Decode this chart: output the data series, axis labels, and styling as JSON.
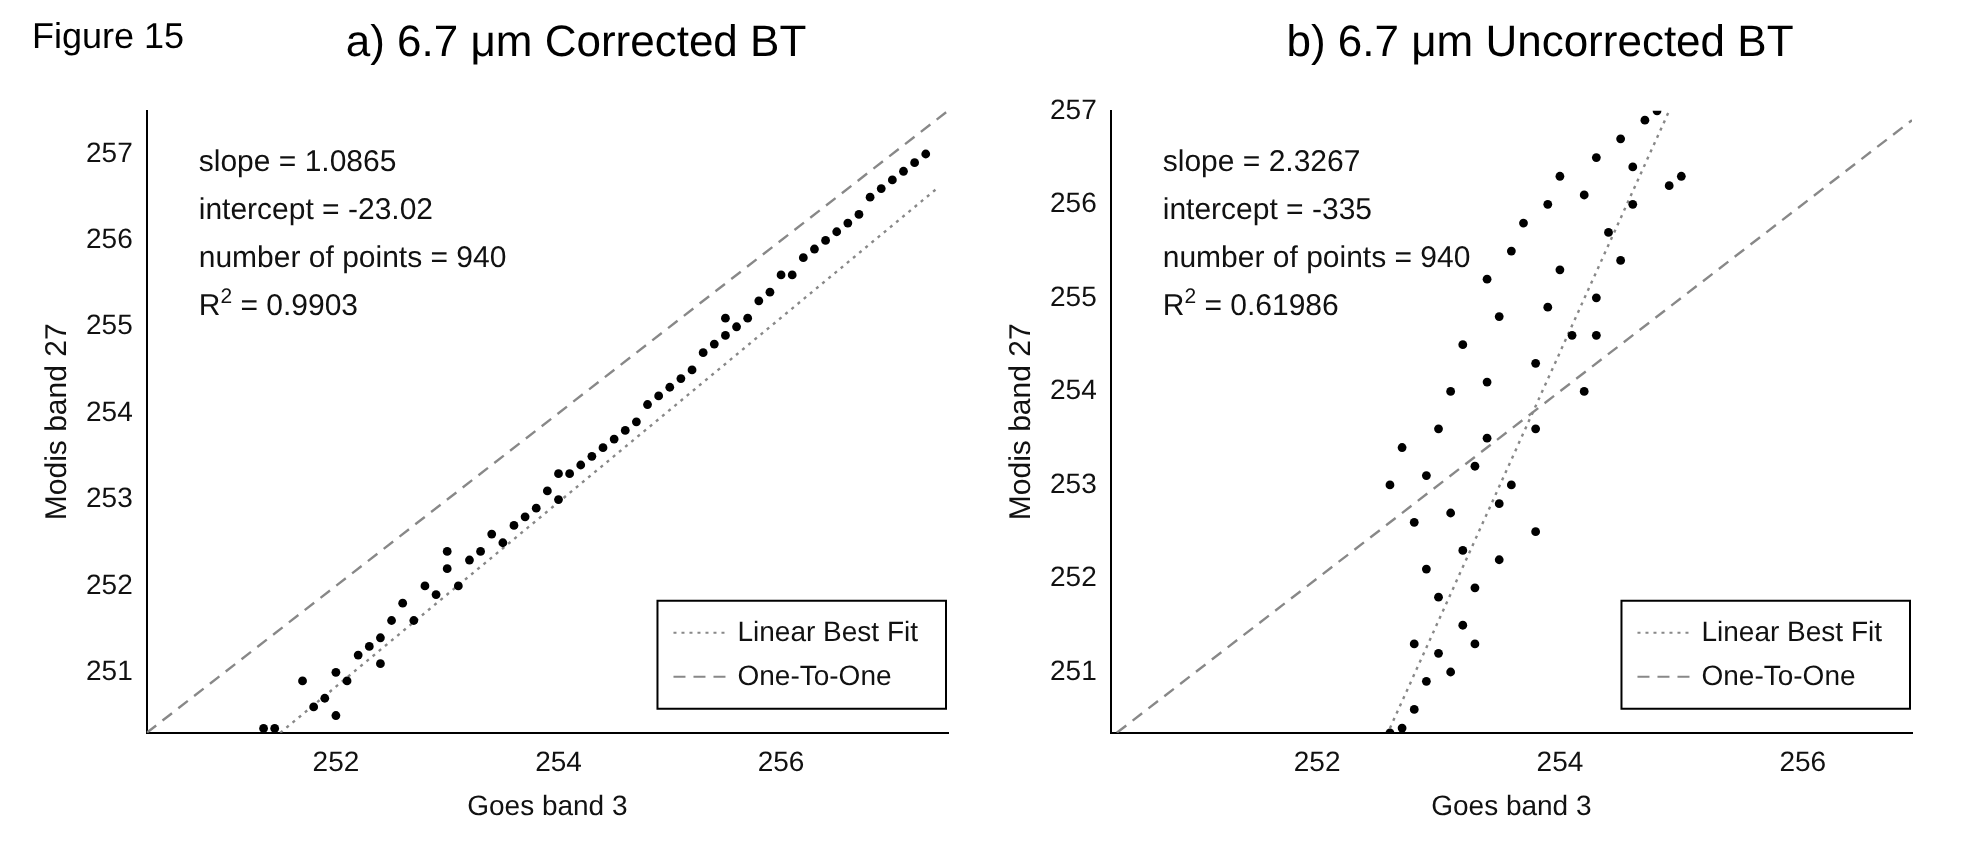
{
  "chart_data": [
    {
      "type": "scatter",
      "title": "a) 6.7 μm Corrected BT",
      "xlabel": "Goes band 3",
      "ylabel": "Modis band 27",
      "annotations": [
        "Figure 15",
        "slope = 1.0865",
        "intercept = -23.02",
        "number of points = 940",
        "R$^{2}$ = 0.9903"
      ],
      "xlim": [
        250.3,
        257.5
      ],
      "ylim": [
        250.3,
        257.5
      ],
      "xticks": [
        252,
        254,
        256
      ],
      "yticks": [
        251,
        252,
        253,
        254,
        255,
        256,
        257
      ],
      "legend": "bottom right",
      "series": [
        {
          "marker": "circle",
          "color": "#000000",
          "x": [
            251.35,
            251.45,
            251.7,
            251.8,
            251.9,
            252.0,
            252.0,
            252.1,
            252.2,
            252.3,
            252.4,
            252.5,
            252.6,
            252.7,
            252.8,
            252.9,
            253.0,
            253.1,
            253.2,
            253.3,
            253.4,
            253.5,
            253.6,
            253.7,
            253.8,
            253.9,
            254.0,
            254.1,
            254.2,
            254.3,
            254.4,
            254.5,
            254.6,
            254.7,
            254.8,
            254.9,
            255.0,
            255.1,
            255.2,
            255.3,
            255.4,
            255.5,
            255.6,
            255.7,
            255.8,
            255.9,
            256.0,
            256.1,
            256.2,
            256.3,
            256.4,
            256.5,
            256.6,
            256.7,
            256.8,
            256.9,
            257.0,
            257.1,
            257.2,
            257.3,
            253.0,
            254.0,
            255.5,
            252.4
          ],
          "values": [
            250.35,
            250.35,
            250.9,
            250.6,
            250.7,
            250.5,
            251.0,
            250.9,
            251.2,
            251.3,
            251.4,
            251.6,
            251.8,
            251.6,
            252.0,
            251.9,
            252.2,
            252.0,
            252.3,
            252.4,
            252.6,
            252.5,
            252.7,
            252.8,
            252.9,
            253.1,
            253.0,
            253.3,
            253.4,
            253.5,
            253.6,
            253.7,
            253.8,
            253.9,
            254.1,
            254.2,
            254.3,
            254.4,
            254.5,
            254.7,
            254.8,
            254.9,
            255.0,
            255.1,
            255.3,
            255.4,
            255.6,
            255.6,
            255.8,
            255.9,
            256.0,
            256.1,
            256.2,
            256.3,
            256.5,
            256.6,
            256.7,
            256.8,
            256.9,
            257.0,
            252.4,
            253.3,
            255.1,
            251.1
          ]
        },
        {
          "type": "line",
          "marker": "none",
          "name": "Linear Best Fit",
          "color": "#888888",
          "line_style": "dotted",
          "x": [
            251.5,
            257.4
          ],
          "values": [
            250.3,
            256.6
          ]
        },
        {
          "type": "line",
          "marker": "none",
          "name": "One-To-One",
          "color": "#888888",
          "line_style": "dashed",
          "x": [
            250.3,
            257.5
          ],
          "values": [
            250.3,
            257.5
          ]
        }
      ]
    },
    {
      "type": "scatter",
      "title": "b) 6.7 μm Uncorrected BT",
      "xlabel": "Goes band 3",
      "ylabel": "Modis band 27",
      "annotations": [
        "slope = 2.3267",
        "intercept = -335",
        "number of points = 940",
        "R$^{2}$ = 0.61986"
      ],
      "xlim": [
        250.3,
        256.9
      ],
      "ylim": [
        250.35,
        257.0
      ],
      "xticks": [
        252,
        254,
        256
      ],
      "yticks": [
        251,
        252,
        253,
        254,
        255,
        256,
        257
      ],
      "legend": "bottom right",
      "series": [
        {
          "marker": "circle",
          "color": "#000000",
          "x": [
            252.6,
            252.7,
            252.8,
            252.9,
            253.0,
            252.8,
            253.1,
            253.2,
            253.0,
            253.3,
            252.9,
            253.2,
            253.5,
            252.8,
            253.1,
            253.5,
            252.6,
            252.9,
            253.3,
            253.6,
            252.7,
            253.0,
            253.4,
            253.8,
            253.1,
            253.4,
            253.8,
            254.2,
            254.3,
            253.2,
            253.5,
            253.9,
            254.3,
            253.4,
            253.6,
            254.0,
            254.5,
            253.7,
            253.9,
            254.2,
            254.6,
            254.0,
            254.3,
            254.6,
            254.9,
            254.5,
            254.7,
            254.8,
            255.0,
            254.4,
            253.8,
            253.3,
            254.1
          ],
          "values": [
            250.35,
            250.4,
            250.6,
            250.9,
            251.2,
            251.3,
            251.0,
            251.5,
            251.8,
            251.9,
            252.1,
            252.3,
            252.2,
            252.6,
            252.7,
            252.8,
            253.0,
            253.1,
            253.2,
            253.0,
            253.4,
            253.6,
            253.5,
            253.6,
            254.0,
            254.1,
            254.3,
            254.0,
            254.6,
            254.5,
            254.8,
            254.9,
            255.0,
            255.2,
            255.5,
            255.3,
            255.4,
            255.8,
            256.0,
            256.1,
            256.0,
            256.3,
            256.5,
            256.4,
            256.2,
            256.7,
            256.9,
            257.0,
            256.3,
            255.7,
            252.5,
            251.3,
            254.6
          ]
        },
        {
          "type": "line",
          "marker": "none",
          "name": "Linear Best Fit",
          "color": "#888888",
          "line_style": "dotted",
          "x": [
            252.6,
            254.9
          ],
          "values": [
            250.4,
            257.0
          ]
        },
        {
          "type": "line",
          "marker": "none",
          "name": "One-To-One",
          "color": "#888888",
          "line_style": "dashed",
          "x": [
            250.35,
            256.9
          ],
          "values": [
            250.35,
            256.9
          ]
        }
      ]
    }
  ]
}
